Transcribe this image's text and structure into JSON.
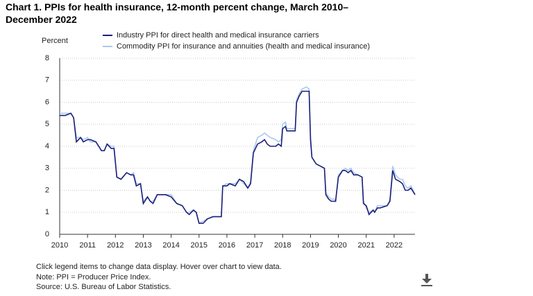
{
  "chart_data": {
    "type": "line",
    "title": "Chart 1. PPIs for health insurance, 12-month percent change, March 2010–December 2022",
    "y_label": "Percent",
    "notes": [
      "Click legend items to change data display. Hover over chart to view data.",
      "Note: PPI = Producer Price Index.",
      "Source: U.S. Bureau of Labor Statistics."
    ],
    "x": [
      2010.0,
      2010.2,
      2010.4,
      2010.5,
      2010.6,
      2010.75,
      2010.85,
      2011.0,
      2011.1,
      2011.3,
      2011.5,
      2011.6,
      2011.7,
      2011.85,
      2011.95,
      2012.05,
      2012.2,
      2012.4,
      2012.55,
      2012.65,
      2012.75,
      2012.9,
      2013.0,
      2013.15,
      2013.25,
      2013.35,
      2013.5,
      2013.8,
      2014.0,
      2014.2,
      2014.4,
      2014.55,
      2014.65,
      2014.8,
      2014.9,
      2015.0,
      2015.15,
      2015.3,
      2015.5,
      2015.8,
      2015.85,
      2016.0,
      2016.1,
      2016.3,
      2016.45,
      2016.6,
      2016.75,
      2016.85,
      2016.95,
      2017.1,
      2017.25,
      2017.35,
      2017.45,
      2017.55,
      2017.75,
      2017.85,
      2017.95,
      2018.0,
      2018.1,
      2018.15,
      2018.45,
      2018.5,
      2018.6,
      2018.7,
      2018.85,
      2018.95,
      2019.0,
      2019.05,
      2019.2,
      2019.35,
      2019.5,
      2019.55,
      2019.65,
      2019.75,
      2019.85,
      2019.9,
      2020.0,
      2020.15,
      2020.25,
      2020.35,
      2020.45,
      2020.55,
      2020.7,
      2020.85,
      2020.9,
      2021.0,
      2021.1,
      2021.25,
      2021.3,
      2021.4,
      2021.5,
      2021.75,
      2021.85,
      2021.95,
      2022.05,
      2022.2,
      2022.3,
      2022.4,
      2022.5,
      2022.6,
      2022.65,
      2022.75
    ],
    "series": [
      {
        "name": "Industry PPI for direct health and medical insurance carriers",
        "color": "#1c1f7a",
        "values": [
          5.4,
          5.4,
          5.5,
          5.3,
          4.2,
          4.4,
          4.2,
          4.3,
          4.3,
          4.2,
          3.8,
          3.8,
          4.1,
          3.9,
          3.9,
          2.6,
          2.5,
          2.8,
          2.7,
          2.7,
          2.2,
          2.3,
          1.4,
          1.7,
          1.5,
          1.4,
          1.8,
          1.8,
          1.7,
          1.4,
          1.3,
          1.0,
          0.9,
          1.1,
          1.0,
          0.5,
          0.5,
          0.7,
          0.8,
          0.8,
          2.2,
          2.2,
          2.3,
          2.2,
          2.5,
          2.4,
          2.1,
          2.3,
          3.7,
          4.1,
          4.2,
          4.3,
          4.1,
          4.0,
          4.0,
          4.1,
          4.0,
          4.8,
          4.9,
          4.7,
          4.7,
          6.0,
          6.3,
          6.5,
          6.5,
          6.5,
          4.3,
          3.5,
          3.2,
          3.1,
          3.0,
          1.8,
          1.6,
          1.5,
          1.5,
          1.5,
          2.6,
          2.9,
          2.9,
          2.8,
          2.9,
          2.7,
          2.7,
          2.6,
          1.4,
          1.3,
          0.9,
          1.1,
          1.0,
          1.2,
          1.2,
          1.3,
          1.5,
          2.9,
          2.5,
          2.4,
          2.3,
          2.0,
          2.0,
          2.1,
          2.0,
          1.8
        ]
      },
      {
        "name": "Commodity PPI for insurance and annuities (health and medical insurance)",
        "color": "#a9c9ee",
        "values": [
          5.5,
          5.5,
          5.5,
          5.3,
          4.4,
          4.4,
          4.3,
          4.4,
          4.2,
          4.2,
          3.8,
          3.8,
          4.1,
          4.0,
          4.0,
          2.6,
          2.5,
          2.8,
          2.7,
          2.8,
          2.3,
          2.3,
          1.5,
          1.7,
          1.5,
          1.5,
          1.8,
          1.8,
          1.8,
          1.4,
          1.3,
          1.0,
          1.0,
          1.1,
          1.0,
          0.5,
          0.6,
          0.7,
          0.8,
          0.8,
          2.2,
          2.3,
          2.3,
          2.3,
          2.5,
          2.3,
          2.1,
          2.4,
          3.8,
          4.4,
          4.5,
          4.6,
          4.5,
          4.4,
          4.3,
          4.2,
          4.3,
          5.0,
          5.1,
          4.8,
          4.8,
          6.1,
          6.4,
          6.6,
          6.7,
          6.6,
          4.5,
          3.5,
          3.2,
          3.1,
          3.0,
          1.9,
          1.7,
          1.6,
          1.6,
          1.5,
          2.7,
          2.9,
          3.0,
          2.9,
          3.0,
          2.8,
          2.7,
          2.6,
          1.5,
          1.2,
          1.0,
          1.1,
          1.0,
          1.3,
          1.3,
          1.3,
          1.6,
          3.1,
          2.7,
          2.5,
          2.5,
          2.2,
          2.1,
          2.2,
          2.1,
          1.8
        ]
      }
    ],
    "xlim": [
      2010,
      2022.75
    ],
    "xticks": [
      2010,
      2011,
      2012,
      2013,
      2014,
      2015,
      2016,
      2017,
      2018,
      2019,
      2020,
      2021,
      2022
    ],
    "ylim": [
      0,
      8
    ],
    "yticks": [
      0,
      1,
      2,
      3,
      4,
      5,
      6,
      7,
      8
    ],
    "grid": true
  }
}
